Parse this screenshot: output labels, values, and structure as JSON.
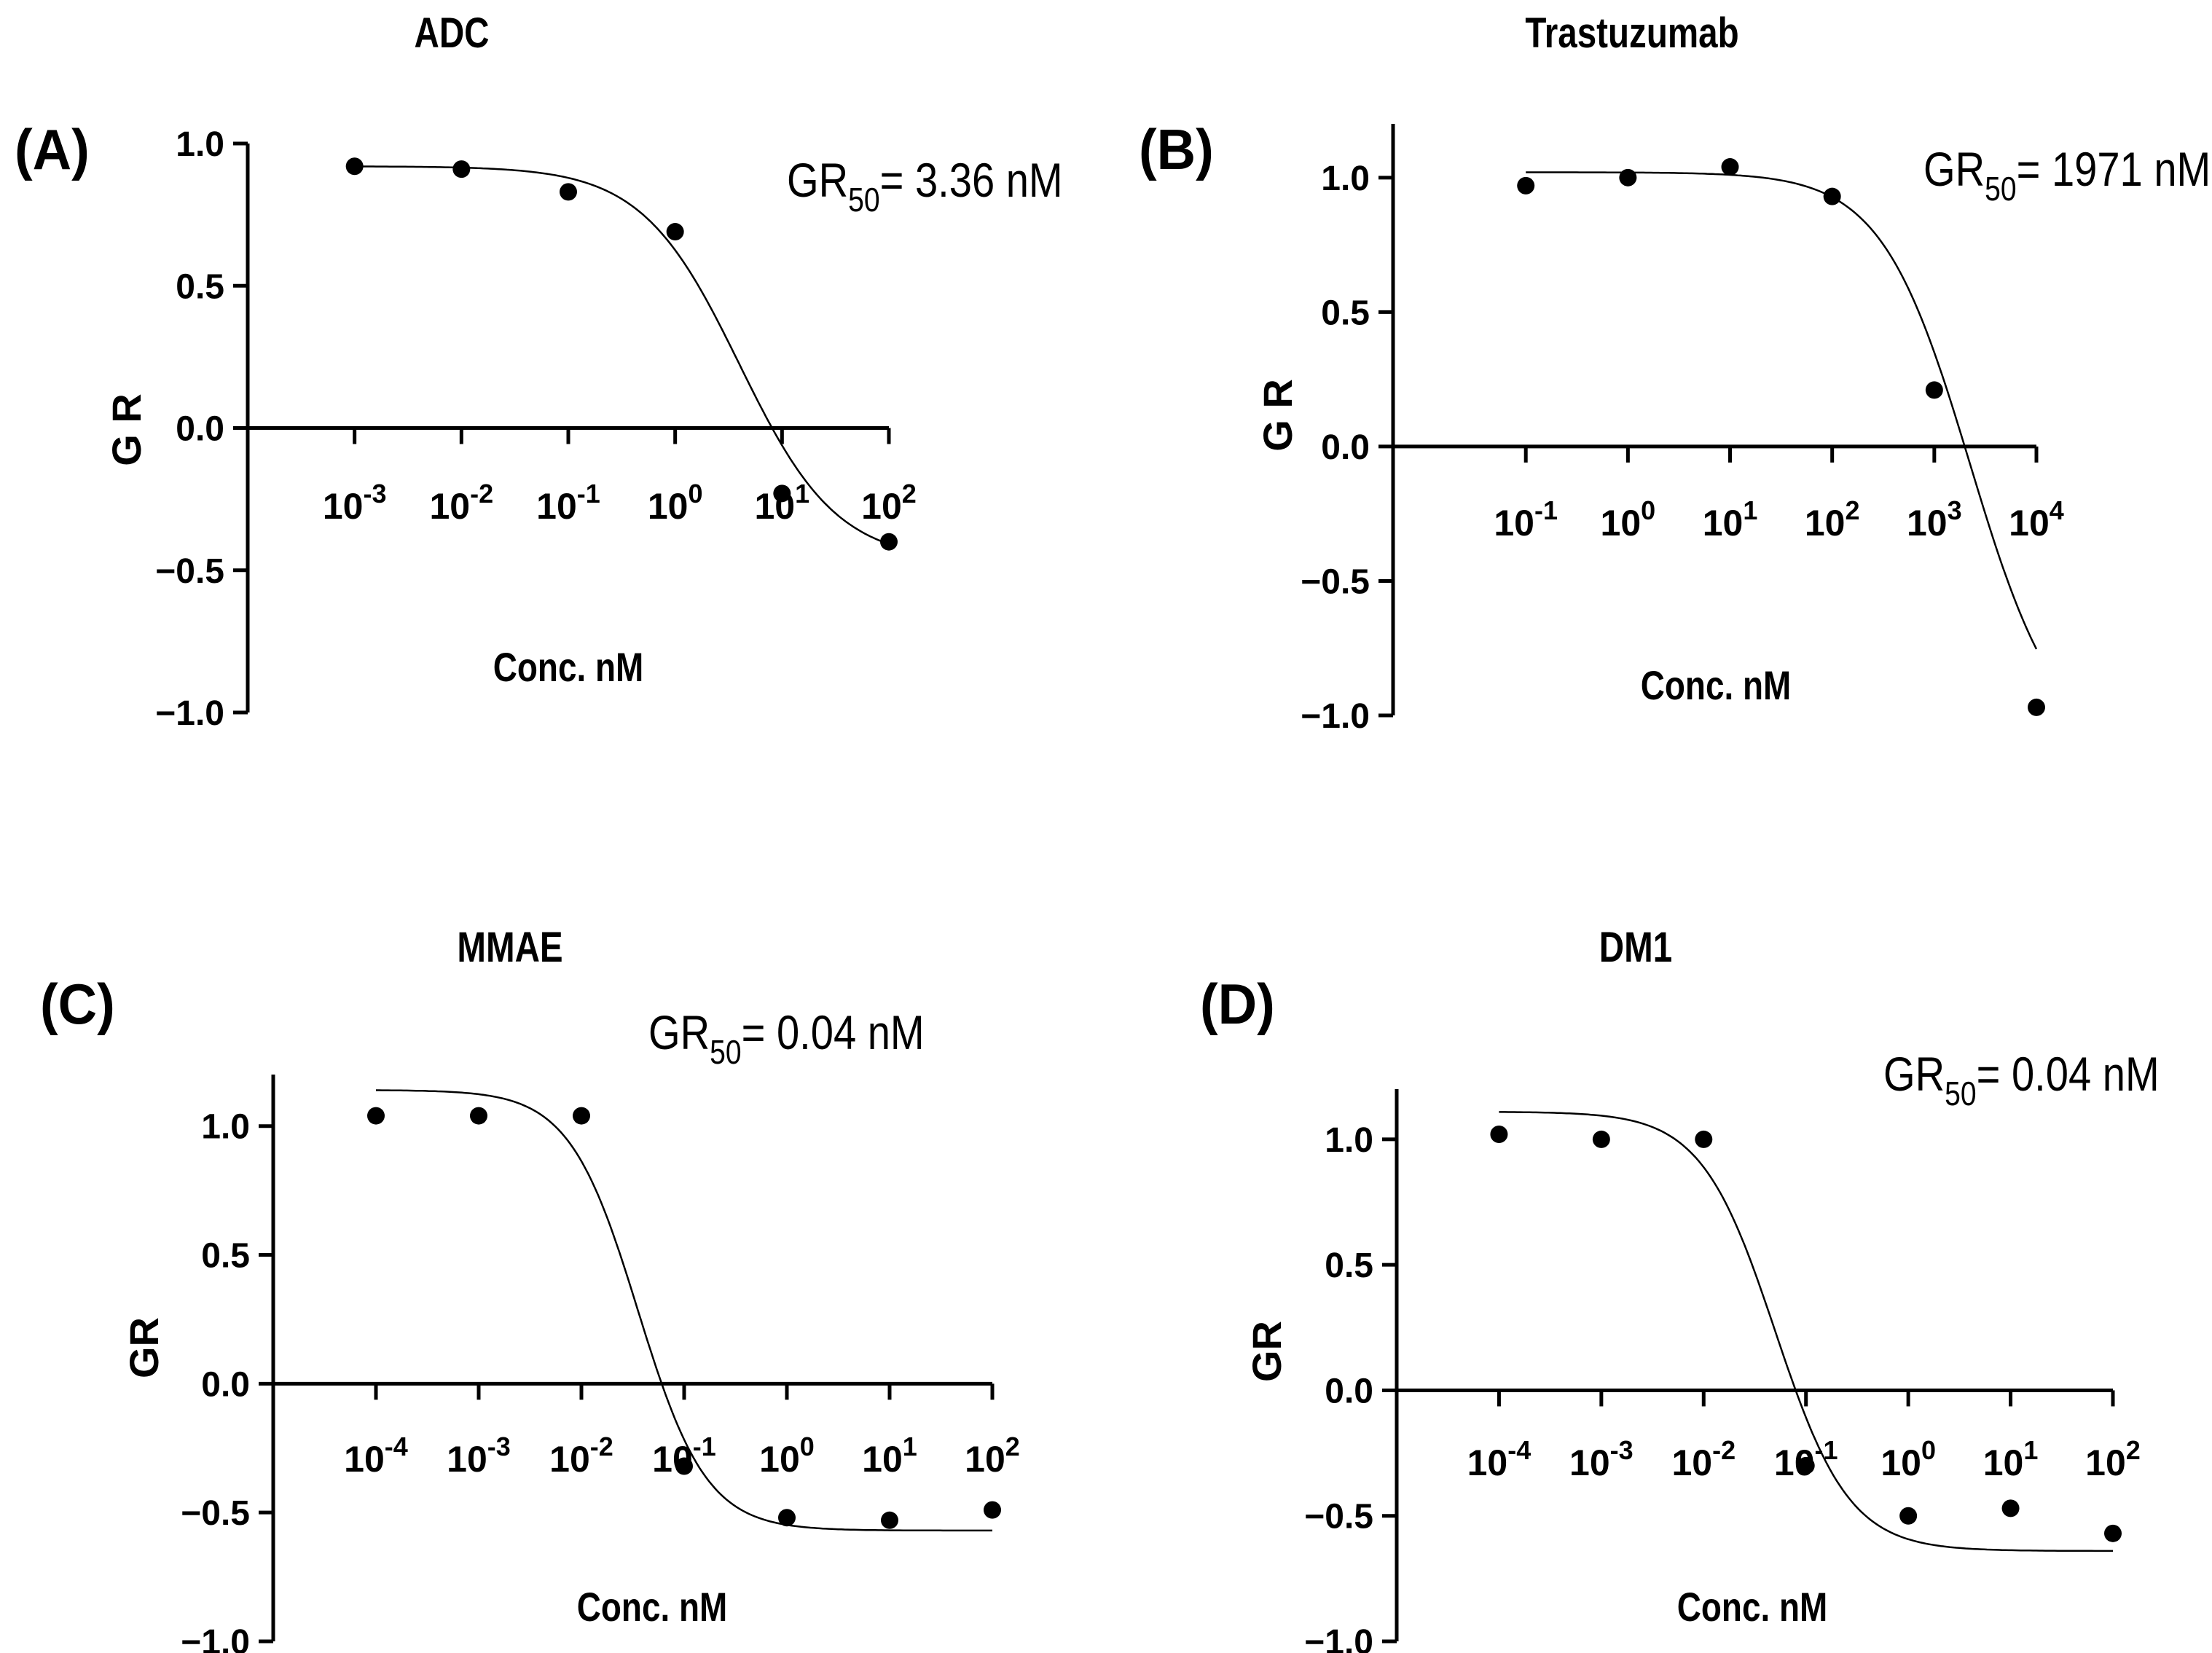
{
  "chart_data": [
    {
      "panel": "(A)",
      "type": "scatter",
      "title": "ADC",
      "annotation": {
        "prefix": "GR",
        "sub": "50",
        "rest": "= 3.36 nM"
      },
      "xlabel": "Conc. nM",
      "ylabel": "G R",
      "xscale": "log",
      "xticks": [
        {
          "base": "10",
          "exp": "-3"
        },
        {
          "base": "10",
          "exp": "-2"
        },
        {
          "base": "10",
          "exp": "-1"
        },
        {
          "base": "10",
          "exp": "0"
        },
        {
          "base": "10",
          "exp": "1"
        },
        {
          "base": "10",
          "exp": "2"
        }
      ],
      "xtick_values": [
        -3,
        -2,
        -1,
        0,
        1,
        2
      ],
      "xlim_log10": [
        -4.0,
        2.0
      ],
      "yticks": [
        "1.0",
        "0.5",
        "0.0",
        "−0.5",
        "−1.0"
      ],
      "ytick_values": [
        1.0,
        0.5,
        0.0,
        -0.5,
        -1.0
      ],
      "ylim": [
        -1.0,
        1.0
      ],
      "points": {
        "log10_x": [
          -3,
          -2,
          -1,
          0,
          1,
          2
        ],
        "y": [
          0.92,
          0.91,
          0.83,
          0.69,
          -0.23,
          -0.4
        ]
      },
      "fit": {
        "top": 0.92,
        "bottom": -0.47,
        "log_ec50": 0.6,
        "hill": 0.95,
        "from_log10": -3,
        "to_log10": 2
      }
    },
    {
      "panel": "(B)",
      "type": "scatter",
      "title": "Trastuzumab",
      "annotation": {
        "prefix": "GR",
        "sub": "50",
        "rest": "= 1971 nM"
      },
      "xlabel": "Conc. nM",
      "ylabel": "G R",
      "xscale": "log",
      "xticks": [
        {
          "base": "10",
          "exp": "-1"
        },
        {
          "base": "10",
          "exp": "0"
        },
        {
          "base": "10",
          "exp": "1"
        },
        {
          "base": "10",
          "exp": "2"
        },
        {
          "base": "10",
          "exp": "3"
        },
        {
          "base": "10",
          "exp": "4"
        }
      ],
      "xtick_values": [
        -1,
        0,
        1,
        2,
        3,
        4
      ],
      "xlim_log10": [
        -2.3,
        4.0
      ],
      "yticks": [
        "1.0",
        "0.5",
        "0.0",
        "−0.5",
        "−1.0"
      ],
      "ytick_values": [
        1.0,
        0.5,
        0.0,
        -0.5,
        -1.0
      ],
      "ylim": [
        -1.0,
        1.2
      ],
      "points": {
        "log10_x": [
          -1,
          0,
          1,
          2,
          3,
          4
        ],
        "y": [
          0.97,
          1.0,
          1.04,
          0.93,
          0.21,
          -0.97
        ]
      },
      "fit": {
        "top": 1.02,
        "bottom": -1.15,
        "log_ec50": 3.35,
        "hill": 1.0,
        "from_log10": -1,
        "to_log10": 4
      }
    },
    {
      "panel": "(C)",
      "type": "scatter",
      "title": "MMAE",
      "annotation": {
        "prefix": "GR",
        "sub": "50",
        "rest": "= 0.04 nM"
      },
      "xlabel": "Conc. nM",
      "ylabel": "GR",
      "xscale": "log",
      "xticks": [
        {
          "base": "10",
          "exp": "-4"
        },
        {
          "base": "10",
          "exp": "-3"
        },
        {
          "base": "10",
          "exp": "-2"
        },
        {
          "base": "10",
          "exp": "-1"
        },
        {
          "base": "10",
          "exp": "0"
        },
        {
          "base": "10",
          "exp": "1"
        },
        {
          "base": "10",
          "exp": "2"
        }
      ],
      "xtick_values": [
        -4,
        -3,
        -2,
        -1,
        0,
        1,
        2
      ],
      "xlim_log10": [
        -5.0,
        2.0
      ],
      "yticks": [
        "1.0",
        "0.5",
        "0.0",
        "−0.5",
        "−1.0"
      ],
      "ytick_values": [
        1.0,
        0.5,
        0.0,
        -0.5,
        -1.0
      ],
      "ylim": [
        -1.0,
        1.2
      ],
      "points": {
        "log10_x": [
          -4,
          -3,
          -2,
          -1,
          0,
          1,
          2
        ],
        "y": [
          1.04,
          1.04,
          1.04,
          -0.32,
          -0.52,
          -0.53,
          -0.49
        ]
      },
      "fit": {
        "top": 1.14,
        "bottom": -0.57,
        "log_ec50": -1.45,
        "hill": 1.3,
        "from_log10": -4,
        "to_log10": 2
      }
    },
    {
      "panel": "(D)",
      "type": "scatter",
      "title": "DM1",
      "annotation": {
        "prefix": "GR",
        "sub": "50",
        "rest": "= 0.04 nM"
      },
      "xlabel": "Conc. nM",
      "ylabel": "GR",
      "xscale": "log",
      "xticks": [
        {
          "base": "10",
          "exp": "-4"
        },
        {
          "base": "10",
          "exp": "-3"
        },
        {
          "base": "10",
          "exp": "-2"
        },
        {
          "base": "10",
          "exp": "-1"
        },
        {
          "base": "10",
          "exp": "0"
        },
        {
          "base": "10",
          "exp": "1"
        },
        {
          "base": "10",
          "exp": "2"
        }
      ],
      "xtick_values": [
        -4,
        -3,
        -2,
        -1,
        0,
        1,
        2
      ],
      "xlim_log10": [
        -5.0,
        2.0
      ],
      "yticks": [
        "1.0",
        "0.5",
        "0.0",
        "−0.5",
        "−1.0"
      ],
      "ytick_values": [
        1.0,
        0.5,
        0.0,
        -0.5,
        -1.0
      ],
      "ylim": [
        -1.0,
        1.2
      ],
      "points": {
        "log10_x": [
          -4,
          -3,
          -2,
          -1,
          0,
          1,
          2
        ],
        "y": [
          1.02,
          1.0,
          1.0,
          -0.3,
          -0.5,
          -0.47,
          -0.57
        ]
      },
      "fit": {
        "top": 1.11,
        "bottom": -0.64,
        "log_ec50": -1.3,
        "hill": 1.2,
        "from_log10": -4,
        "to_log10": 2
      }
    }
  ],
  "colors": {
    "ink": "#000000",
    "background": "#ffffff"
  }
}
